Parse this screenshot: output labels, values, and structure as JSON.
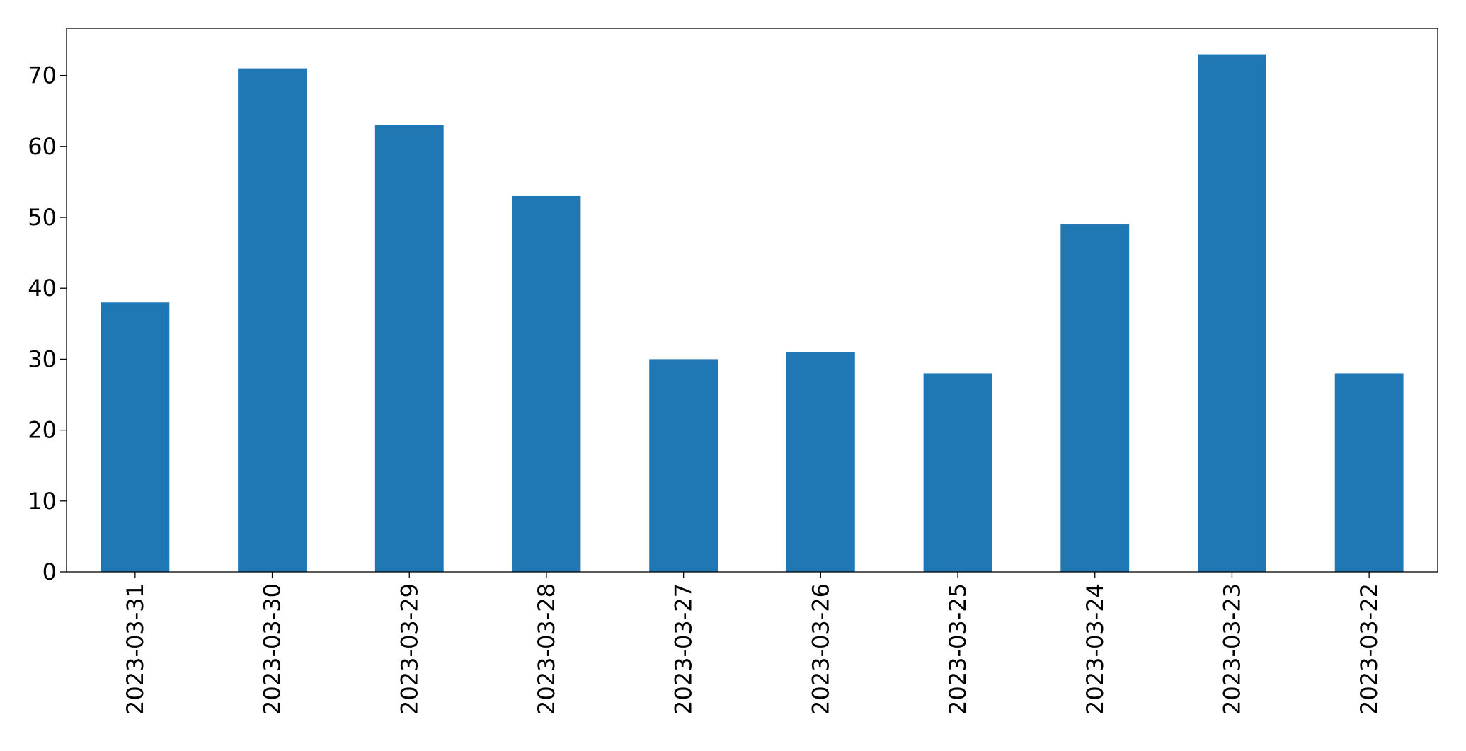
{
  "chart_data": {
    "type": "bar",
    "categories": [
      "2023-03-31",
      "2023-03-30",
      "2023-03-29",
      "2023-03-28",
      "2023-03-27",
      "2023-03-26",
      "2023-03-25",
      "2023-03-24",
      "2023-03-23",
      "2023-03-22"
    ],
    "values": [
      38,
      71,
      63,
      53,
      30,
      31,
      28,
      49,
      73,
      28
    ],
    "color": "#1f77b4",
    "ylim": [
      0,
      76.65
    ],
    "yticks": [
      0,
      10,
      20,
      30,
      40,
      50,
      60,
      70
    ],
    "grid": false
  }
}
